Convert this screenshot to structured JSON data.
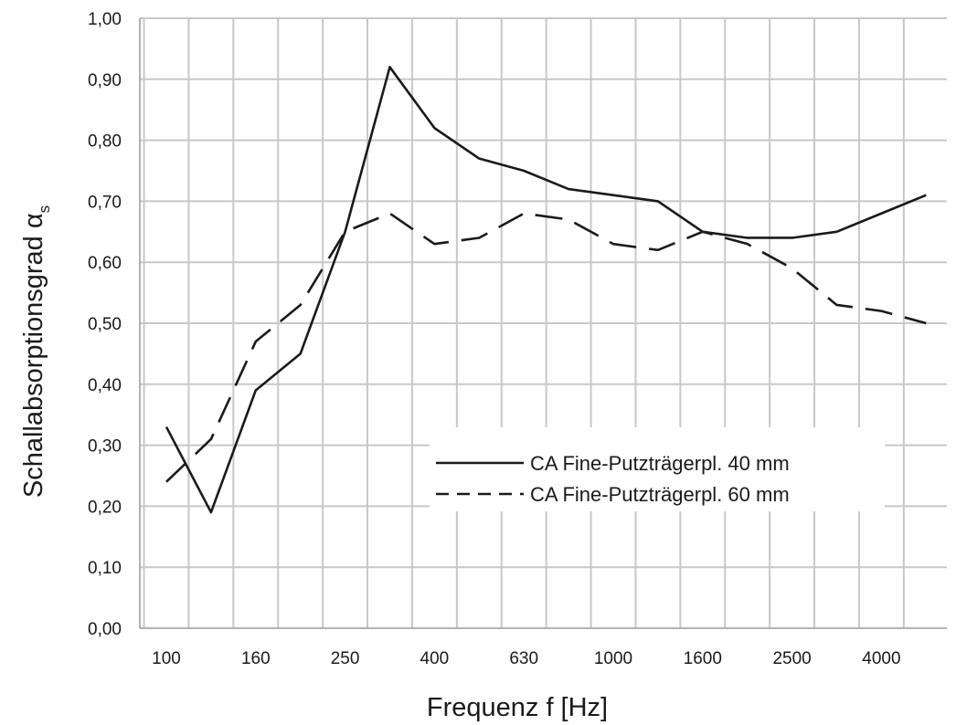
{
  "chart_data": {
    "type": "line",
    "title": "",
    "xlabel": "Frequenz f [Hz]",
    "ylabel_main": "Schallabsorptionsgrad α",
    "ylabel_subscript": "s",
    "x": [
      "100",
      "125",
      "160",
      "200",
      "250",
      "315",
      "400",
      "500",
      "630",
      "800",
      "1000",
      "1250",
      "1600",
      "2000",
      "2500",
      "3150",
      "4000",
      "5000"
    ],
    "x_tick_labels": [
      "100",
      "160",
      "250",
      "400",
      "630",
      "1000",
      "1600",
      "2500",
      "4000"
    ],
    "y_tick_labels": [
      "0,00",
      "0,10",
      "0,20",
      "0,30",
      "0,40",
      "0,50",
      "0,60",
      "0,70",
      "0,80",
      "0,90",
      "1,00"
    ],
    "ylim": [
      0,
      1
    ],
    "grid": true,
    "legend_position": "lower-right",
    "series": [
      {
        "name": "CA Fine-Putzträgerpl. 40 mm",
        "style": "solid",
        "values": [
          0.33,
          0.19,
          0.39,
          0.45,
          0.65,
          0.92,
          0.82,
          0.77,
          0.75,
          0.72,
          0.71,
          0.7,
          0.65,
          0.64,
          0.64,
          0.65,
          0.68,
          0.71
        ]
      },
      {
        "name": "CA Fine-Putzträgerpl. 60 mm",
        "style": "dashed",
        "values": [
          0.24,
          0.31,
          0.47,
          0.53,
          0.65,
          0.68,
          0.63,
          0.64,
          0.68,
          0.67,
          0.63,
          0.62,
          0.65,
          0.63,
          0.59,
          0.53,
          0.52,
          0.5
        ]
      }
    ]
  }
}
